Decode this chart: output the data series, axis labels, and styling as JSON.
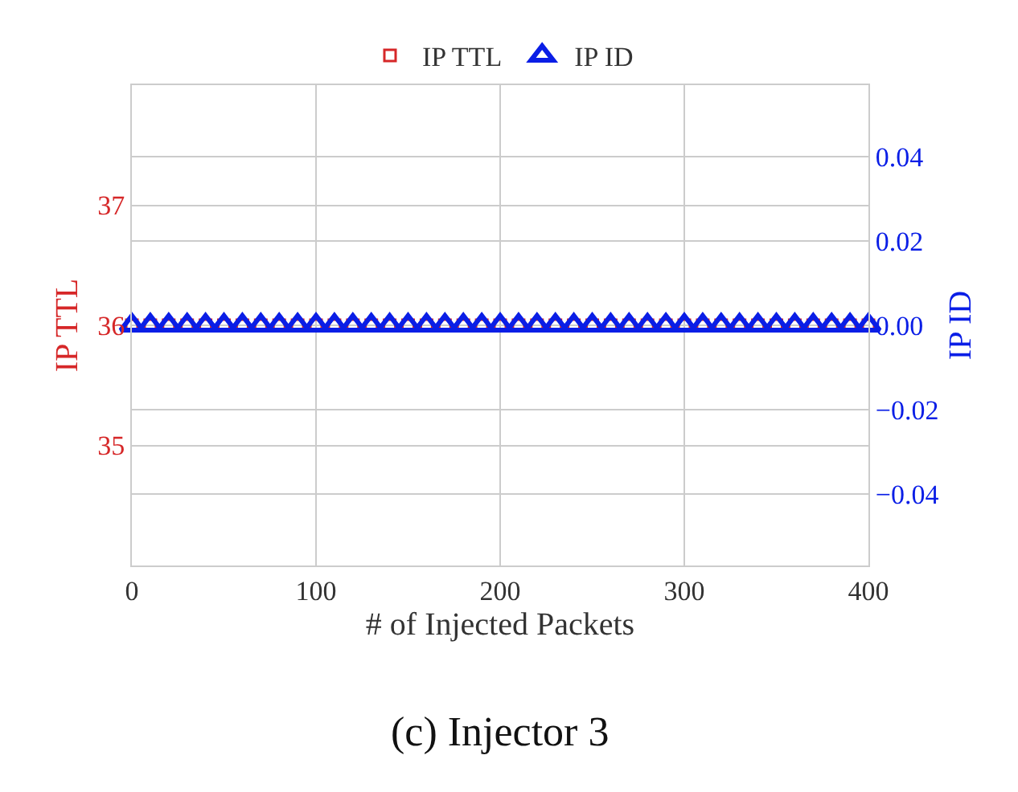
{
  "chart_data": {
    "type": "scatter",
    "xlabel": "# of Injected Packets",
    "ylabel": "IP TTL",
    "y2label": "IP ID",
    "annotations": [
      "(c) Injector 3"
    ],
    "x": [
      0,
      10,
      20,
      30,
      40,
      50,
      60,
      70,
      80,
      90,
      100,
      110,
      120,
      130,
      140,
      150,
      160,
      170,
      180,
      190,
      200,
      210,
      220,
      230,
      240,
      250,
      260,
      270,
      280,
      290,
      300,
      310,
      320,
      330,
      340,
      350,
      360,
      370,
      380,
      390,
      400
    ],
    "series": [
      {
        "name": "IP TTL",
        "color": "#d62728",
        "marker": "square",
        "values": [
          36,
          36,
          36,
          36,
          36,
          36,
          36,
          36,
          36,
          36,
          36,
          36,
          36,
          36,
          36,
          36,
          36,
          36,
          36,
          36,
          36,
          36,
          36,
          36,
          36,
          36,
          36,
          36,
          36,
          36,
          36,
          36,
          36,
          36,
          36,
          36,
          36,
          36,
          36,
          36,
          36
        ]
      },
      {
        "name": "IP ID",
        "color": "#0a1ee6",
        "marker": "triangle",
        "axis": "y2",
        "values": [
          0,
          0,
          0,
          0,
          0,
          0,
          0,
          0,
          0,
          0,
          0,
          0,
          0,
          0,
          0,
          0,
          0,
          0,
          0,
          0,
          0,
          0,
          0,
          0,
          0,
          0,
          0,
          0,
          0,
          0,
          0,
          0,
          0,
          0,
          0,
          0,
          0,
          0,
          0,
          0,
          0
        ]
      }
    ],
    "xlim": [
      0,
      400
    ],
    "xticks": [
      0,
      100,
      200,
      300,
      400
    ],
    "ylim": [
      34,
      38
    ],
    "yticks": [
      35,
      36,
      37
    ],
    "y2lim": [
      -0.057,
      0.057
    ],
    "y2ticks": [
      {
        "value": -0.04,
        "label": "−0.04"
      },
      {
        "value": -0.02,
        "label": "−0.02"
      },
      {
        "value": 0,
        "label": "0.00"
      },
      {
        "value": 0.02,
        "label": "0.02"
      },
      {
        "value": 0.04,
        "label": "0.04"
      }
    ],
    "grid": true,
    "legend": "top"
  }
}
